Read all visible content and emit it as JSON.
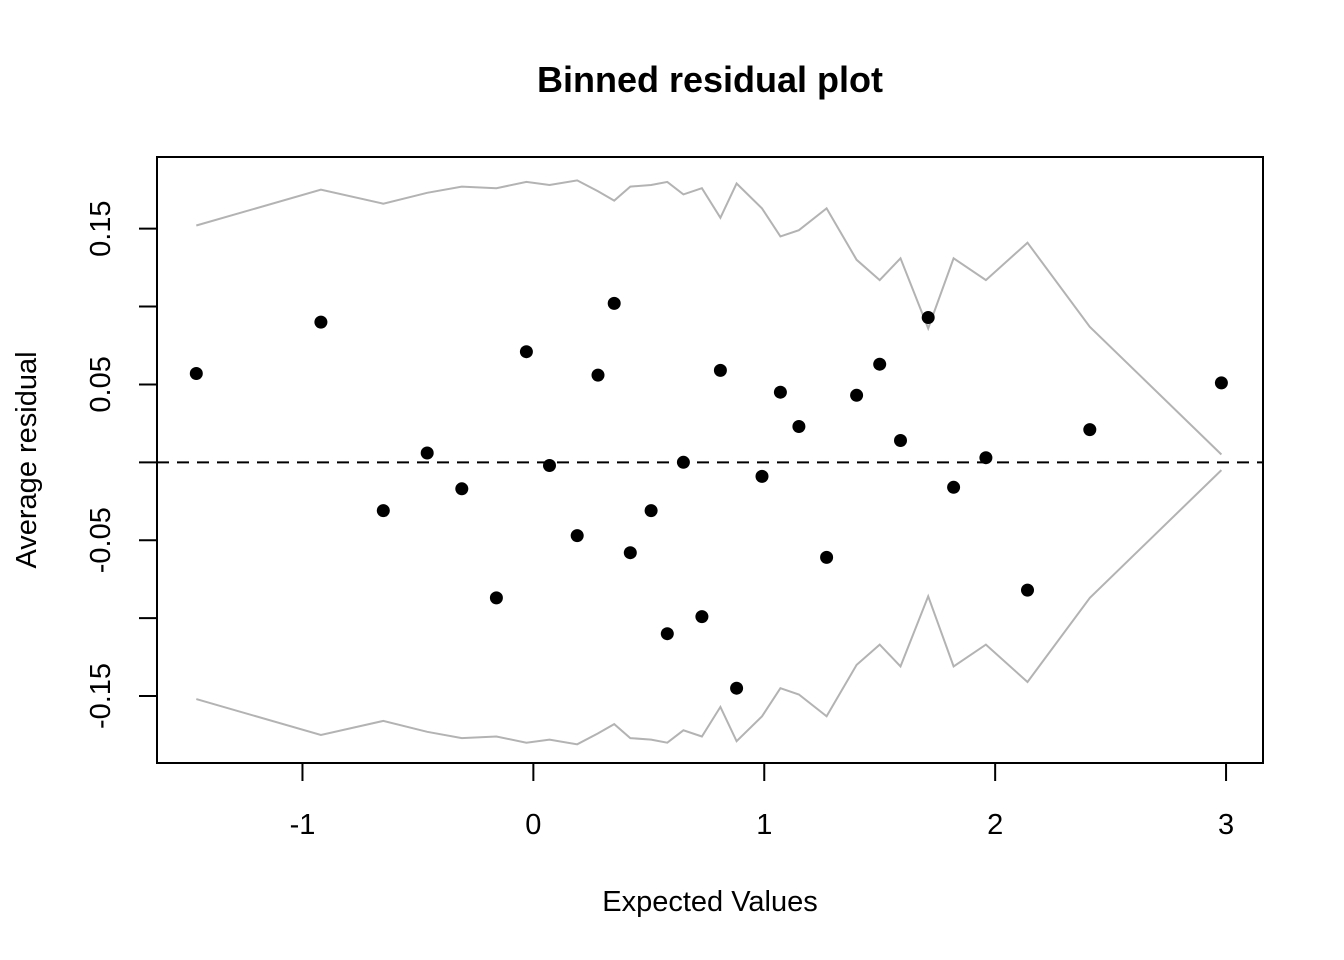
{
  "chart_data": {
    "type": "scatter",
    "title": "Binned residual plot",
    "xlabel": "Expected Values",
    "ylabel": "Average residual",
    "xlim": [
      -1.63,
      3.16
    ],
    "ylim": [
      -0.193,
      0.196
    ],
    "x_ticks": [
      -1,
      0,
      1,
      2,
      3
    ],
    "x_tick_labels": [
      "-1",
      "0",
      "1",
      "2",
      "3"
    ],
    "y_ticks": [
      -0.15,
      -0.1,
      -0.05,
      0,
      0.05,
      0.1,
      0.15
    ],
    "y_tick_labels": [
      "-0.15",
      "",
      "-0.05",
      "",
      "0.05",
      "",
      "0.15"
    ],
    "grid": false,
    "legend": "none",
    "reference_line": {
      "y": 0,
      "style": "dashed",
      "color": "#000000"
    },
    "points_color": "#000000",
    "band_color": "#b3b3b3",
    "points": [
      {
        "x": -1.46,
        "y": 0.057
      },
      {
        "x": -0.92,
        "y": 0.09
      },
      {
        "x": -0.65,
        "y": -0.031
      },
      {
        "x": -0.46,
        "y": 0.006
      },
      {
        "x": -0.31,
        "y": -0.017
      },
      {
        "x": -0.16,
        "y": -0.087
      },
      {
        "x": -0.03,
        "y": 0.071
      },
      {
        "x": 0.07,
        "y": -0.002
      },
      {
        "x": 0.19,
        "y": -0.047
      },
      {
        "x": 0.28,
        "y": 0.056
      },
      {
        "x": 0.35,
        "y": 0.102
      },
      {
        "x": 0.42,
        "y": -0.058
      },
      {
        "x": 0.51,
        "y": -0.031
      },
      {
        "x": 0.58,
        "y": -0.11
      },
      {
        "x": 0.65,
        "y": 0.0
      },
      {
        "x": 0.73,
        "y": -0.099
      },
      {
        "x": 0.81,
        "y": 0.059
      },
      {
        "x": 0.88,
        "y": -0.145
      },
      {
        "x": 0.99,
        "y": -0.009
      },
      {
        "x": 1.07,
        "y": 0.045
      },
      {
        "x": 1.15,
        "y": 0.023
      },
      {
        "x": 1.27,
        "y": -0.061
      },
      {
        "x": 1.4,
        "y": 0.043
      },
      {
        "x": 1.5,
        "y": 0.063
      },
      {
        "x": 1.59,
        "y": 0.014
      },
      {
        "x": 1.71,
        "y": 0.093
      },
      {
        "x": 1.82,
        "y": -0.016
      },
      {
        "x": 1.96,
        "y": 0.003
      },
      {
        "x": 2.14,
        "y": -0.082
      },
      {
        "x": 2.41,
        "y": 0.021
      },
      {
        "x": 2.98,
        "y": 0.051
      }
    ],
    "upper_band": [
      {
        "x": -1.46,
        "y": 0.152
      },
      {
        "x": -0.92,
        "y": 0.175
      },
      {
        "x": -0.65,
        "y": 0.166
      },
      {
        "x": -0.46,
        "y": 0.173
      },
      {
        "x": -0.31,
        "y": 0.177
      },
      {
        "x": -0.16,
        "y": 0.176
      },
      {
        "x": -0.03,
        "y": 0.18
      },
      {
        "x": 0.07,
        "y": 0.178
      },
      {
        "x": 0.19,
        "y": 0.181
      },
      {
        "x": 0.28,
        "y": 0.174
      },
      {
        "x": 0.35,
        "y": 0.168
      },
      {
        "x": 0.42,
        "y": 0.177
      },
      {
        "x": 0.51,
        "y": 0.178
      },
      {
        "x": 0.58,
        "y": 0.18
      },
      {
        "x": 0.65,
        "y": 0.172
      },
      {
        "x": 0.73,
        "y": 0.176
      },
      {
        "x": 0.81,
        "y": 0.157
      },
      {
        "x": 0.88,
        "y": 0.179
      },
      {
        "x": 0.99,
        "y": 0.163
      },
      {
        "x": 1.07,
        "y": 0.145
      },
      {
        "x": 1.15,
        "y": 0.149
      },
      {
        "x": 1.27,
        "y": 0.163
      },
      {
        "x": 1.4,
        "y": 0.13
      },
      {
        "x": 1.5,
        "y": 0.117
      },
      {
        "x": 1.59,
        "y": 0.131
      },
      {
        "x": 1.71,
        "y": 0.086
      },
      {
        "x": 1.82,
        "y": 0.131
      },
      {
        "x": 1.96,
        "y": 0.117
      },
      {
        "x": 2.14,
        "y": 0.141
      },
      {
        "x": 2.41,
        "y": 0.087
      },
      {
        "x": 2.98,
        "y": 0.005
      }
    ],
    "lower_band": [
      {
        "x": -1.46,
        "y": -0.152
      },
      {
        "x": -0.92,
        "y": -0.175
      },
      {
        "x": -0.65,
        "y": -0.166
      },
      {
        "x": -0.46,
        "y": -0.173
      },
      {
        "x": -0.31,
        "y": -0.177
      },
      {
        "x": -0.16,
        "y": -0.176
      },
      {
        "x": -0.03,
        "y": -0.18
      },
      {
        "x": 0.07,
        "y": -0.178
      },
      {
        "x": 0.19,
        "y": -0.181
      },
      {
        "x": 0.28,
        "y": -0.174
      },
      {
        "x": 0.35,
        "y": -0.168
      },
      {
        "x": 0.42,
        "y": -0.177
      },
      {
        "x": 0.51,
        "y": -0.178
      },
      {
        "x": 0.58,
        "y": -0.18
      },
      {
        "x": 0.65,
        "y": -0.172
      },
      {
        "x": 0.73,
        "y": -0.176
      },
      {
        "x": 0.81,
        "y": -0.157
      },
      {
        "x": 0.88,
        "y": -0.179
      },
      {
        "x": 0.99,
        "y": -0.163
      },
      {
        "x": 1.07,
        "y": -0.145
      },
      {
        "x": 1.15,
        "y": -0.149
      },
      {
        "x": 1.27,
        "y": -0.163
      },
      {
        "x": 1.4,
        "y": -0.13
      },
      {
        "x": 1.5,
        "y": -0.117
      },
      {
        "x": 1.59,
        "y": -0.131
      },
      {
        "x": 1.71,
        "y": -0.086
      },
      {
        "x": 1.82,
        "y": -0.131
      },
      {
        "x": 1.96,
        "y": -0.117
      },
      {
        "x": 2.14,
        "y": -0.141
      },
      {
        "x": 2.41,
        "y": -0.087
      },
      {
        "x": 2.98,
        "y": -0.005
      }
    ]
  }
}
